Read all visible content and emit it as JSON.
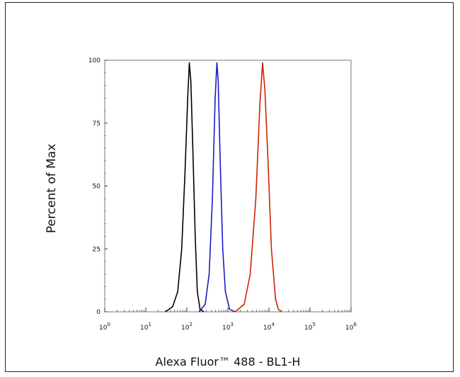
{
  "chart_data": {
    "type": "line",
    "title": "",
    "xlabel": "Alexa Fluor™ 488 - BL1-H",
    "ylabel": "Percent of Max",
    "x_scale": "log",
    "xlim": [
      1,
      1000000
    ],
    "ylim": [
      0,
      100
    ],
    "grid": false,
    "x_ticks": [
      {
        "value": 1,
        "base": "10",
        "exp": "0"
      },
      {
        "value": 10,
        "base": "10",
        "exp": "1"
      },
      {
        "value": 100,
        "base": "10",
        "exp": "2"
      },
      {
        "value": 1000,
        "base": "10",
        "exp": "3"
      },
      {
        "value": 10000,
        "base": "10",
        "exp": "4"
      },
      {
        "value": 100000,
        "base": "10",
        "exp": "5"
      },
      {
        "value": 1000000,
        "base": "10",
        "exp": "6"
      }
    ],
    "y_ticks": [
      0,
      25,
      50,
      75,
      100
    ],
    "series": [
      {
        "color": "#000000",
        "points": [
          [
            30,
            0
          ],
          [
            45,
            2
          ],
          [
            60,
            8
          ],
          [
            75,
            25
          ],
          [
            90,
            55
          ],
          [
            105,
            85
          ],
          [
            115,
            99
          ],
          [
            125,
            92
          ],
          [
            140,
            65
          ],
          [
            160,
            30
          ],
          [
            180,
            8
          ],
          [
            210,
            1
          ],
          [
            260,
            0
          ]
        ]
      },
      {
        "color": "#1a1ac8",
        "points": [
          [
            200,
            0
          ],
          [
            280,
            3
          ],
          [
            350,
            15
          ],
          [
            420,
            45
          ],
          [
            490,
            85
          ],
          [
            540,
            99
          ],
          [
            580,
            92
          ],
          [
            650,
            60
          ],
          [
            750,
            25
          ],
          [
            870,
            8
          ],
          [
            1100,
            1
          ],
          [
            1500,
            0
          ]
        ]
      },
      {
        "color": "#cc2200",
        "points": [
          [
            1500,
            0
          ],
          [
            2500,
            3
          ],
          [
            3500,
            15
          ],
          [
            4800,
            45
          ],
          [
            6000,
            82
          ],
          [
            7000,
            99
          ],
          [
            8000,
            88
          ],
          [
            9500,
            60
          ],
          [
            11500,
            25
          ],
          [
            14500,
            5
          ],
          [
            17000,
            1
          ],
          [
            20000,
            0
          ]
        ]
      }
    ]
  }
}
